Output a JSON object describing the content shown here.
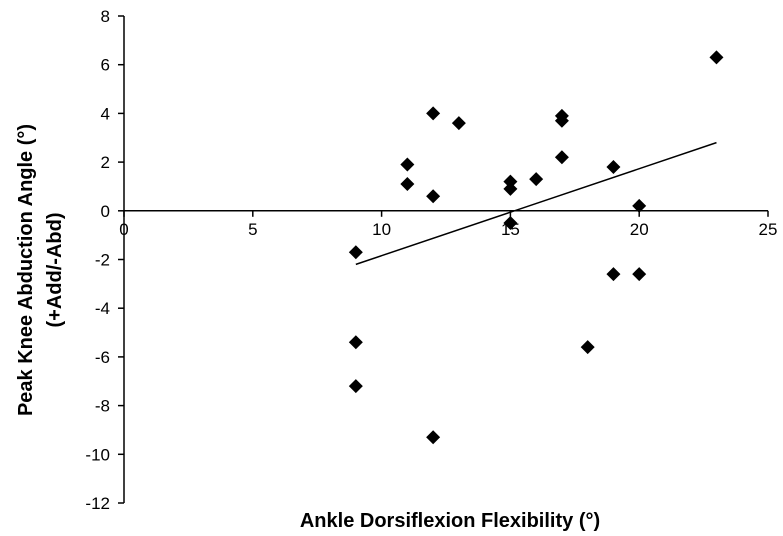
{
  "chart_data": {
    "type": "scatter",
    "xlabel": "Ankle Dorsiflexion Flexibility (°)",
    "ylabel_line1": "Peak  Knee Abduction Angle (°)",
    "ylabel_line2": "(+Add/-Abd)",
    "xlim": [
      0,
      25
    ],
    "ylim": [
      -12,
      8
    ],
    "xticks": [
      0,
      5,
      10,
      15,
      20,
      25
    ],
    "yticks": [
      8,
      6,
      4,
      2,
      0,
      -2,
      -4,
      -6,
      -8,
      -10,
      -12
    ],
    "xtick_labels": [
      "0",
      "5",
      "10",
      "15",
      "20",
      "25"
    ],
    "ytick_labels": [
      "8",
      "6",
      "4",
      "2",
      "0",
      "-2",
      "-4",
      "-6",
      "-8",
      "-10",
      "-12"
    ],
    "grid": false,
    "marker": "diamond",
    "color": "#000000",
    "points": [
      {
        "x": 9,
        "y": -1.7
      },
      {
        "x": 9,
        "y": -5.4
      },
      {
        "x": 9,
        "y": -7.2
      },
      {
        "x": 11,
        "y": 1.9
      },
      {
        "x": 11,
        "y": 1.1
      },
      {
        "x": 12,
        "y": 4.0
      },
      {
        "x": 12,
        "y": 0.6
      },
      {
        "x": 12,
        "y": -9.3
      },
      {
        "x": 13,
        "y": 3.6
      },
      {
        "x": 15,
        "y": 1.2
      },
      {
        "x": 15,
        "y": 0.9
      },
      {
        "x": 15,
        "y": -0.5
      },
      {
        "x": 16,
        "y": 1.3
      },
      {
        "x": 17,
        "y": 3.9
      },
      {
        "x": 17,
        "y": 3.7
      },
      {
        "x": 17,
        "y": 2.2
      },
      {
        "x": 18,
        "y": -5.6
      },
      {
        "x": 19,
        "y": 1.8
      },
      {
        "x": 19,
        "y": -2.6
      },
      {
        "x": 20,
        "y": 0.2
      },
      {
        "x": 20,
        "y": -2.6
      },
      {
        "x": 23,
        "y": 6.3
      }
    ],
    "trendline": {
      "x": [
        9,
        23
      ],
      "y": [
        -2.2,
        2.8
      ]
    }
  }
}
